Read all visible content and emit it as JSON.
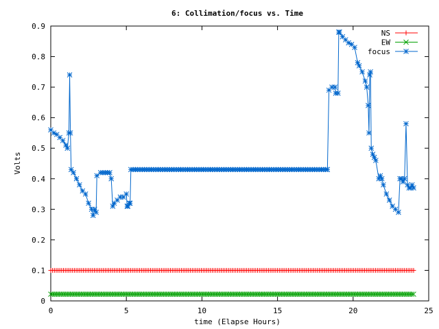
{
  "chart_data": {
    "type": "line",
    "title": "6: Collimation/focus vs. Time",
    "xlabel": "time (Elapse Hours)",
    "ylabel": "Volts",
    "xlim": [
      0,
      25
    ],
    "ylim": [
      0,
      0.9
    ],
    "xticks": [
      0,
      5,
      10,
      15,
      20,
      25
    ],
    "xtick_labels": [
      "0",
      "5",
      "10",
      "15",
      "20",
      "25"
    ],
    "yticks": [
      0,
      0.1,
      0.2,
      0.3,
      0.4,
      0.5,
      0.6,
      0.7,
      0.8,
      0.9
    ],
    "ytick_labels": [
      "0",
      "0.1",
      "0.2",
      "0.3",
      "0.4",
      "0.5",
      "0.6",
      "0.7",
      "0.8",
      "0.9"
    ],
    "grid": false,
    "legend_position": "top-right",
    "series": [
      {
        "name": "NS",
        "color": "#ff0000",
        "marker": "plus",
        "x": [
          0,
          24
        ],
        "y": [
          0.1,
          0.1
        ],
        "constant_dense_step": 0.12
      },
      {
        "name": "EW",
        "color": "#00a000",
        "marker": "cross",
        "x": [
          0,
          24
        ],
        "y": [
          0.022,
          0.022
        ],
        "constant_dense_step": 0.12
      },
      {
        "name": "focus",
        "color": "#0066cc",
        "marker": "star",
        "x": [
          0,
          0.2,
          0.4,
          0.6,
          0.8,
          1.0,
          1.1,
          1.2,
          1.25,
          1.3,
          1.35,
          1.5,
          1.7,
          1.9,
          2.1,
          2.3,
          2.5,
          2.7,
          2.8,
          2.9,
          3.0,
          3.05,
          3.3,
          3.6,
          3.9,
          4.0,
          4.1,
          4.2,
          4.4,
          4.6,
          4.8,
          5.0,
          5.05,
          5.1,
          5.2,
          5.25,
          5.3,
          18.3,
          18.4,
          18.6,
          18.8,
          18.85,
          19.0,
          19.05,
          19.1,
          19.3,
          19.5,
          19.7,
          19.9,
          20.1,
          20.3,
          20.4,
          20.6,
          20.8,
          20.9,
          21.0,
          21.05,
          21.1,
          21.15,
          21.2,
          21.3,
          21.4,
          21.5,
          21.7,
          21.8,
          21.9,
          22.0,
          22.2,
          22.4,
          22.6,
          22.8,
          23.0,
          23.1,
          23.2,
          23.3,
          23.4,
          23.5,
          23.6,
          23.7,
          23.8,
          23.9,
          24.0
        ],
        "y": [
          0.56,
          0.55,
          0.545,
          0.535,
          0.525,
          0.51,
          0.5,
          0.55,
          0.74,
          0.55,
          0.43,
          0.42,
          0.4,
          0.38,
          0.36,
          0.35,
          0.32,
          0.3,
          0.28,
          0.3,
          0.29,
          0.41,
          0.42,
          0.42,
          0.42,
          0.4,
          0.31,
          0.32,
          0.33,
          0.34,
          0.34,
          0.35,
          0.31,
          0.31,
          0.32,
          0.32,
          0.43,
          0.43,
          0.69,
          0.7,
          0.7,
          0.68,
          0.68,
          0.88,
          0.88,
          0.865,
          0.855,
          0.845,
          0.84,
          0.83,
          0.78,
          0.77,
          0.75,
          0.72,
          0.7,
          0.64,
          0.55,
          0.74,
          0.75,
          0.5,
          0.48,
          0.47,
          0.46,
          0.4,
          0.41,
          0.4,
          0.38,
          0.35,
          0.33,
          0.31,
          0.3,
          0.29,
          0.4,
          0.4,
          0.39,
          0.4,
          0.58,
          0.38,
          0.37,
          0.37,
          0.38,
          0.37
        ],
        "flat_dense_step": 0.15
      }
    ]
  }
}
